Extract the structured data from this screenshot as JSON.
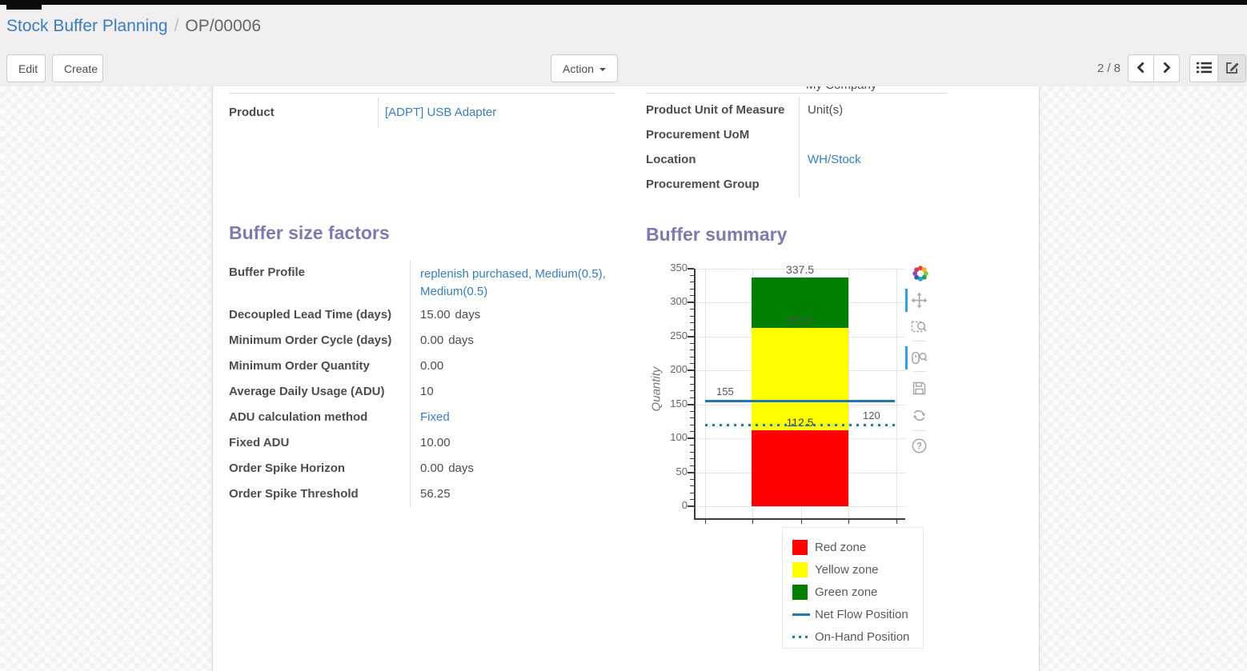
{
  "breadcrumb": {
    "parent": "Stock Buffer Planning",
    "separator": "/",
    "current": "OP/00006"
  },
  "toolbar": {
    "edit_label": "Edit",
    "create_label": "Create",
    "action_label": "Action",
    "pager": "2 / 8",
    "view_switchers": [
      "list",
      "form"
    ],
    "active_view": "form"
  },
  "form": {
    "clipped_company_value": "My Company",
    "factors_title": "Buffer size factors",
    "summary_title": "Buffer summary",
    "top_left_fields": [
      {
        "label": "Product",
        "value": "[ADPT] USB Adapter",
        "link": true
      }
    ],
    "top_right_fields": [
      {
        "label": "Product Unit of Measure",
        "value": "Unit(s)",
        "link": false
      },
      {
        "label": "Procurement UoM",
        "value": "",
        "link": false
      },
      {
        "label": "Location",
        "value": "WH/Stock",
        "link": true
      },
      {
        "label": "Procurement Group",
        "value": "",
        "link": false
      }
    ],
    "factor_fields": [
      {
        "label": "Buffer Profile",
        "value": "replenish purchased, Medium(0.5), Medium(0.5)",
        "link": true
      },
      {
        "label": "Decoupled Lead Time (days)",
        "value": "15.00",
        "suffix": "days"
      },
      {
        "label": "Minimum Order Cycle (days)",
        "value": "0.00",
        "suffix": "days"
      },
      {
        "label": "Minimum Order Quantity",
        "value": "0.00"
      },
      {
        "label": "Average Daily Usage (ADU)",
        "value": "10"
      },
      {
        "label": "ADU calculation method",
        "value": "Fixed",
        "link": true
      },
      {
        "label": "Fixed ADU",
        "value": "10.00"
      },
      {
        "label": "Order Spike Horizon",
        "value": "0.00",
        "suffix": "days"
      },
      {
        "label": "Order Spike Threshold",
        "value": "56.25"
      }
    ]
  },
  "chart_data": {
    "type": "bar",
    "title": "Buffer summary",
    "ylabel": "Quantity",
    "ylim": [
      0,
      350
    ],
    "y_major_ticks": [
      0,
      50,
      100,
      150,
      200,
      250,
      300,
      350
    ],
    "y_minor_step": 10,
    "grid": true,
    "zones": [
      {
        "name": "Red zone",
        "from": 0,
        "to": 112.5,
        "color": "#ff0000"
      },
      {
        "name": "Yellow zone",
        "from": 112.5,
        "to": 262.5,
        "color": "#ffff00"
      },
      {
        "name": "Green zone",
        "from": 262.5,
        "to": 337.5,
        "color": "#008000"
      }
    ],
    "zone_labels": [
      {
        "text": "337.5",
        "value": 337.5,
        "color": "#555555"
      },
      {
        "text": "262.5",
        "value": 262.5,
        "color": "#3f5240"
      },
      {
        "text": "112.5",
        "value": 112.5,
        "color": "#3d3d3d"
      }
    ],
    "lines": [
      {
        "name": "Net Flow Position",
        "label": "155",
        "value": 155,
        "style": "solid",
        "color": "#1f77b4",
        "label_pos": "left"
      },
      {
        "name": "On-Hand Position",
        "label": "120",
        "value": 120,
        "style": "dotted",
        "color": "#1f77b4",
        "label_pos": "right"
      }
    ],
    "legend": [
      {
        "label": "Red zone",
        "swatch": "box",
        "color": "#ff0000"
      },
      {
        "label": "Yellow zone",
        "swatch": "box",
        "color": "#ffff00"
      },
      {
        "label": "Green zone",
        "swatch": "box",
        "color": "#008000"
      },
      {
        "label": "Net Flow Position",
        "swatch": "line",
        "color": "#1f77b4"
      },
      {
        "label": "On-Hand Position",
        "swatch": "dots",
        "color": "#1f77b4"
      }
    ],
    "legend_position": "below-right",
    "toolbar_tools": [
      "bokeh-logo",
      "pan",
      "box-zoom",
      "wheel-zoom",
      "save",
      "reset",
      "help"
    ],
    "active_tools": [
      "pan",
      "wheel-zoom"
    ]
  }
}
